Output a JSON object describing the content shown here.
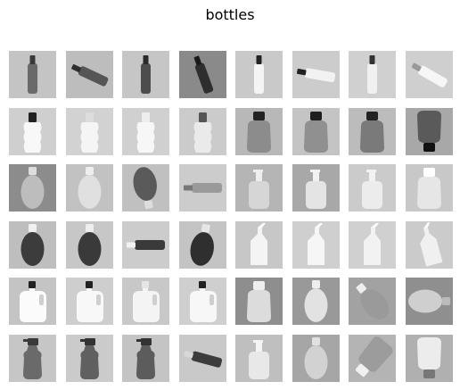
{
  "title": "bottles",
  "tiles": [
    {
      "bg": "#c4c4c4",
      "shape": "tall",
      "fill": "#6a6a6a",
      "cap": "#3a3a3a",
      "angle": 0
    },
    {
      "bg": "#bdbdbd",
      "shape": "tall",
      "fill": "#555555",
      "cap": "#2e2e2e",
      "angle": -65
    },
    {
      "bg": "#c6c6c6",
      "shape": "tall",
      "fill": "#4d4d4d",
      "cap": "#2a2a2a",
      "angle": 0
    },
    {
      "bg": "#8a8a8a",
      "shape": "tall",
      "fill": "#2e2e2e",
      "cap": "#1a1a1a",
      "angle": -20
    },
    {
      "bg": "#c9c9c9",
      "shape": "tall",
      "fill": "#f4f4f4",
      "cap": "#222222",
      "angle": 0
    },
    {
      "bg": "#cccccc",
      "shape": "tall",
      "fill": "#f2f2f2",
      "cap": "#222222",
      "angle": -80
    },
    {
      "bg": "#d0d0d0",
      "shape": "tall",
      "fill": "#f0f0f0",
      "cap": "#333333",
      "angle": 0
    },
    {
      "bg": "#cfcfcf",
      "shape": "tall",
      "fill": "#f6f6f6",
      "cap": "#999999",
      "angle": -60
    },
    {
      "bg": "#cfcfcf",
      "shape": "wavy",
      "fill": "#f8f8f8",
      "cap": "#222222",
      "angle": 0
    },
    {
      "bg": "#d2d2d2",
      "shape": "wavy",
      "fill": "#f5f5f5",
      "cap": "#dddddd",
      "angle": 0
    },
    {
      "bg": "#d0d0d0",
      "shape": "wavy",
      "fill": "#f7f7f7",
      "cap": "#eeeeee",
      "angle": 0
    },
    {
      "bg": "#cbcbcb",
      "shape": "wavy",
      "fill": "#eaeaea",
      "cap": "#555555",
      "angle": 0
    },
    {
      "bg": "#b8b8b8",
      "shape": "wide",
      "fill": "#8c8c8c",
      "cap": "#222222",
      "angle": 0
    },
    {
      "bg": "#c4c4c4",
      "shape": "wide",
      "fill": "#909090",
      "cap": "#1e1e1e",
      "angle": 0
    },
    {
      "bg": "#bcbcbc",
      "shape": "wide",
      "fill": "#7a7a7a",
      "cap": "#222222",
      "angle": 0
    },
    {
      "bg": "#a8a8a8",
      "shape": "wide",
      "fill": "#5a5a5a",
      "cap": "#111111",
      "angle": 180
    },
    {
      "bg": "#8c8c8c",
      "shape": "oval",
      "fill": "#bdbdbd",
      "cap": "#dddddd",
      "angle": 0
    },
    {
      "bg": "#c2c2c2",
      "shape": "oval",
      "fill": "#e0e0e0",
      "cap": "#eeeeee",
      "angle": 0
    },
    {
      "bg": "#c0c0c0",
      "shape": "oval",
      "fill": "#5a5a5a",
      "cap": "#dddddd",
      "angle": 170
    },
    {
      "bg": "#cccccc",
      "shape": "tall",
      "fill": "#9a9a9a",
      "cap": "#777777",
      "angle": -90
    },
    {
      "bg": "#b5b5b5",
      "shape": "pump",
      "fill": "#d6d6d6",
      "cap": "#eeeeee",
      "angle": 0
    },
    {
      "bg": "#a8a8a8",
      "shape": "pump",
      "fill": "#e4e4e4",
      "cap": "#f2f2f2",
      "angle": 0
    },
    {
      "bg": "#cbcbcb",
      "shape": "pump",
      "fill": "#ececec",
      "cap": "#f2f2f2",
      "angle": 0
    },
    {
      "bg": "#c8c8c8",
      "shape": "wide",
      "fill": "#e6e6e6",
      "cap": "#ffffff",
      "angle": 0
    },
    {
      "bg": "#bebebe",
      "shape": "oval",
      "fill": "#3c3c3c",
      "cap": "#f0f0f0",
      "angle": 0
    },
    {
      "bg": "#c7c7c7",
      "shape": "oval",
      "fill": "#3a3a3a",
      "cap": "#eeeeee",
      "angle": 0
    },
    {
      "bg": "#cccccc",
      "shape": "tall",
      "fill": "#3a3a3a",
      "cap": "#f2f2f2",
      "angle": -90
    },
    {
      "bg": "#c4c4c4",
      "shape": "oval",
      "fill": "#2f2f2f",
      "cap": "#e6e6e6",
      "angle": 10
    },
    {
      "bg": "#c7c7c7",
      "shape": "duck",
      "fill": "#f4f4f4",
      "cap": "#ffffff",
      "angle": 0
    },
    {
      "bg": "#cfcfcf",
      "shape": "duck",
      "fill": "#f6f6f6",
      "cap": "#ffffff",
      "angle": 0
    },
    {
      "bg": "#d0d0d0",
      "shape": "duck",
      "fill": "#f2f2f2",
      "cap": "#ffffff",
      "angle": 0
    },
    {
      "bg": "#cbcbcb",
      "shape": "duck",
      "fill": "#f0f0f0",
      "cap": "#ffffff",
      "angle": -15
    },
    {
      "bg": "#c4c4c4",
      "shape": "jug",
      "fill": "#fbfbfb",
      "cap": "#222222",
      "angle": 0
    },
    {
      "bg": "#cecece",
      "shape": "jug",
      "fill": "#f8f8f8",
      "cap": "#222222",
      "angle": 0
    },
    {
      "bg": "#c8c8c8",
      "shape": "jug",
      "fill": "#f4f4f4",
      "cap": "#e6e6e6",
      "angle": 0
    },
    {
      "bg": "#cfcfcf",
      "shape": "jug",
      "fill": "#f7f7f7",
      "cap": "#222222",
      "angle": 0
    },
    {
      "bg": "#8e8e8e",
      "shape": "wide",
      "fill": "#dcdcdc",
      "cap": "#eeeeee",
      "angle": 0
    },
    {
      "bg": "#999999",
      "shape": "oval",
      "fill": "#e2e2e2",
      "cap": "#eeeeee",
      "angle": 0
    },
    {
      "bg": "#a2a2a2",
      "shape": "oval",
      "fill": "#9a9a9a",
      "cap": "#eeeeee",
      "angle": -40
    },
    {
      "bg": "#8f8f8f",
      "shape": "oval",
      "fill": "#cfcfcf",
      "cap": "#bbbbbb",
      "angle": 90
    },
    {
      "bg": "#c6c6c6",
      "shape": "spray",
      "fill": "#6a6a6a",
      "cap": "#3a3a3a",
      "angle": 0
    },
    {
      "bg": "#cbcbcb",
      "shape": "spray",
      "fill": "#606060",
      "cap": "#333333",
      "angle": 0
    },
    {
      "bg": "#c4c4c4",
      "shape": "spray",
      "fill": "#5c5c5c",
      "cap": "#333333",
      "angle": 0
    },
    {
      "bg": "#c9c9c9",
      "shape": "tall",
      "fill": "#3c3c3c",
      "cap": "#d8d8d8",
      "angle": -75
    },
    {
      "bg": "#bfbfbf",
      "shape": "pump",
      "fill": "#e8e8e8",
      "cap": "#f4f4f4",
      "angle": 0
    },
    {
      "bg": "#a6a6a6",
      "shape": "oval",
      "fill": "#d2d2d2",
      "cap": "#e0e0e0",
      "angle": 0
    },
    {
      "bg": "#b4b4b4",
      "shape": "wide",
      "fill": "#9c9c9c",
      "cap": "#f0f0f0",
      "angle": -140
    },
    {
      "bg": "#b0b0b0",
      "shape": "wide",
      "fill": "#ececec",
      "cap": "#777777",
      "angle": 180
    }
  ]
}
